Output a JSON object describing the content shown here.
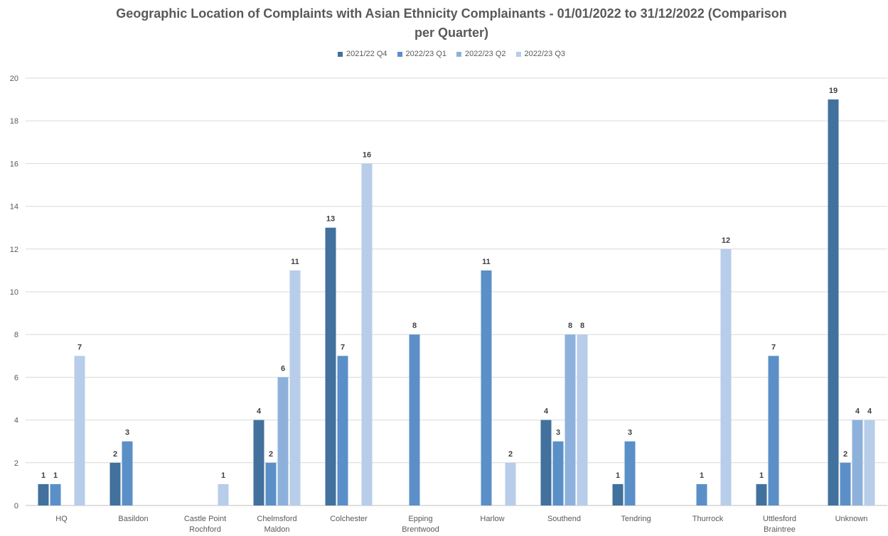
{
  "chart_data": {
    "type": "bar",
    "title": "Geographic Location of Complaints with Asian Ethnicity Complainants - 01/01/2022 to 31/12/2022 (Comparison\nper Quarter)",
    "xlabel": "",
    "ylabel": "",
    "ylim": [
      0,
      20
    ],
    "yticks": [
      0,
      2,
      4,
      6,
      8,
      10,
      12,
      14,
      16,
      18,
      20
    ],
    "grid": true,
    "legend_position": "top",
    "categories": [
      "HQ",
      "Basildon",
      "Castle Point\nRochford",
      "Chelmsford\nMaldon",
      "Colchester",
      "Epping\nBrentwood",
      "Harlow",
      "Southend",
      "Tendring",
      "Thurrock",
      "Uttlesford\nBraintree",
      "Unknown"
    ],
    "series": [
      {
        "name": "2021/22 Q4",
        "color": "#41719c",
        "values": [
          1,
          2,
          0,
          4,
          13,
          0,
          0,
          4,
          1,
          0,
          1,
          19
        ]
      },
      {
        "name": "2022/23 Q1",
        "color": "#5b8fc7",
        "values": [
          1,
          3,
          0,
          2,
          7,
          8,
          11,
          3,
          3,
          1,
          7,
          2
        ]
      },
      {
        "name": "2022/23 Q2",
        "color": "#8eb1dc",
        "values": [
          0,
          0,
          0,
          6,
          0,
          0,
          0,
          8,
          0,
          0,
          0,
          4
        ]
      },
      {
        "name": "2022/23 Q3",
        "color": "#b7cde9",
        "values": [
          7,
          0,
          1,
          11,
          16,
          0,
          2,
          8,
          0,
          12,
          0,
          4
        ]
      }
    ]
  }
}
